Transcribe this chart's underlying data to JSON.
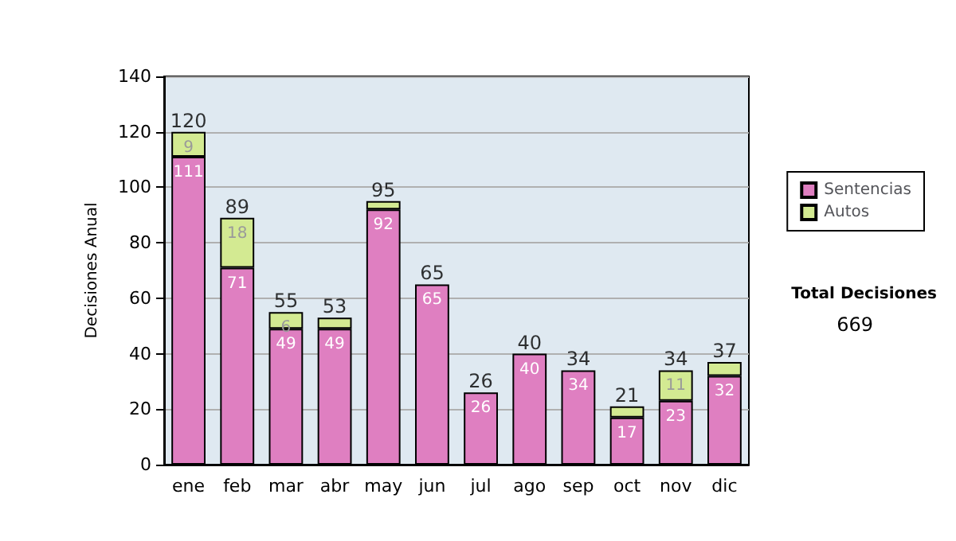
{
  "chart_data": {
    "type": "bar",
    "ylabel": "Decisiones Anual",
    "categories": [
      "ene",
      "feb",
      "mar",
      "abr",
      "may",
      "jun",
      "jul",
      "ago",
      "sep",
      "oct",
      "nov",
      "dic"
    ],
    "stacked": true,
    "series": [
      {
        "name": "Sentencias",
        "color": "#df7fc1",
        "values": [
          111,
          71,
          49,
          49,
          92,
          65,
          26,
          40,
          34,
          17,
          23,
          32
        ],
        "value_labels": [
          "111",
          "71",
          "49",
          "49",
          "92",
          "65",
          "26",
          "40",
          "34",
          "17",
          "23",
          "32"
        ]
      },
      {
        "name": "Autos",
        "color": "#d3ea92",
        "values": [
          9,
          18,
          6,
          4,
          3,
          0,
          0,
          0,
          0,
          4,
          11,
          5
        ],
        "value_labels": [
          "9",
          "18",
          "6",
          null,
          null,
          null,
          null,
          null,
          null,
          null,
          "11",
          null
        ]
      }
    ],
    "totals": [
      "120",
      "89",
      "55",
      "53",
      "95",
      "65",
      "26",
      "40",
      "34",
      "21",
      "34",
      "37"
    ],
    "ylim": [
      0,
      140
    ],
    "yticks": [
      0,
      20,
      40,
      60,
      80,
      100,
      120,
      140
    ],
    "grid": "y",
    "legend": "right",
    "annotations": [
      "Total Decisiones",
      "669"
    ]
  }
}
